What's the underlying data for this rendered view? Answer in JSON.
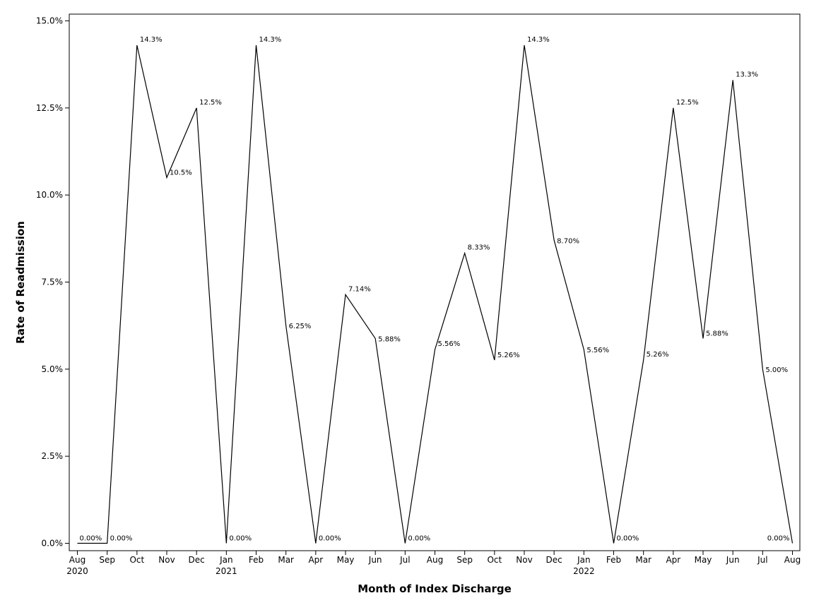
{
  "chart_data": {
    "type": "line",
    "title": "",
    "xlabel": "Month of Index Discharge",
    "ylabel": "Rate of Readmission",
    "ylim": [
      0,
      15
    ],
    "yticks": [
      "0.0%",
      "2.5%",
      "5.0%",
      "7.5%",
      "10.0%",
      "12.5%",
      "15.0%"
    ],
    "grid": false,
    "categories": [
      "Aug",
      "Sep",
      "Oct",
      "Nov",
      "Dec",
      "Jan",
      "Feb",
      "Mar",
      "Apr",
      "May",
      "Jun",
      "Jul",
      "Aug",
      "Sep",
      "Oct",
      "Nov",
      "Dec",
      "Jan",
      "Feb",
      "Mar",
      "Apr",
      "May",
      "Jun",
      "Jul",
      "Aug"
    ],
    "year_labels": [
      "2020",
      "",
      "",
      "",
      "",
      "2021",
      "",
      "",
      "",
      "",
      "",
      "",
      "",
      "",
      "",
      "",
      "",
      "2022",
      "",
      "",
      "",
      "",
      "",
      "",
      ""
    ],
    "series": [
      {
        "values": [
          0,
          0,
          14.3,
          10.5,
          12.5,
          0,
          14.3,
          6.25,
          0,
          7.14,
          5.88,
          0,
          5.56,
          8.33,
          5.26,
          14.3,
          8.7,
          5.56,
          0,
          5.26,
          12.5,
          5.88,
          13.3,
          5.0,
          0
        ],
        "labels": [
          "0.00%",
          "0.00%",
          "14.3%",
          "10.5%",
          "12.5%",
          "0.00%",
          "14.3%",
          "6.25%",
          "0.00%",
          "7.14%",
          "5.88%",
          "0.00%",
          "5.56%",
          "8.33%",
          "5.26%",
          "14.3%",
          "8.70%",
          "5.56%",
          "0.00%",
          "5.26%",
          "12.5%",
          "5.88%",
          "13.3%",
          "5.00%",
          "0.00%"
        ]
      }
    ]
  }
}
